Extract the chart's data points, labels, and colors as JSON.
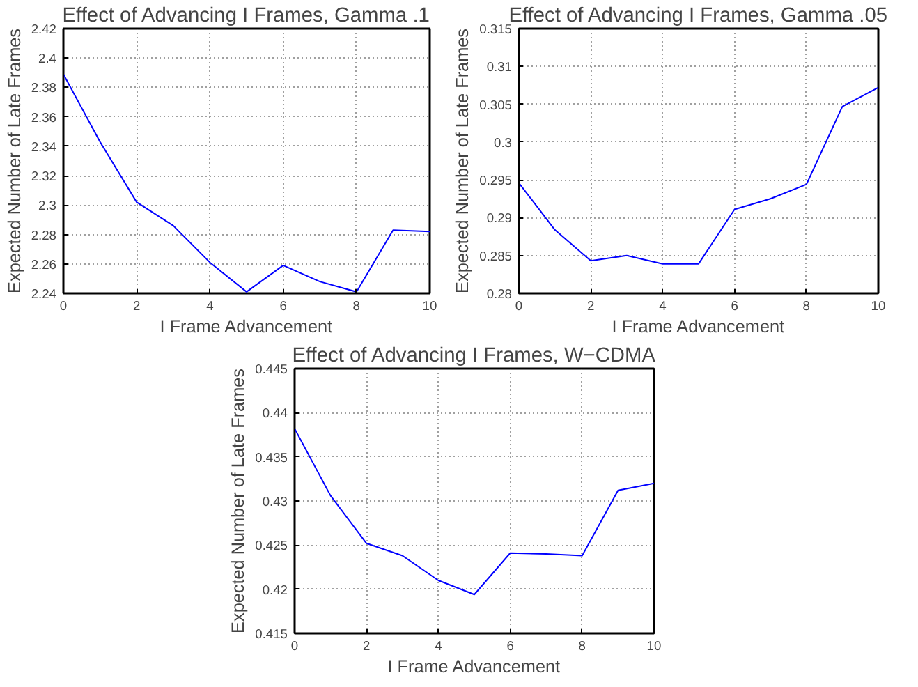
{
  "chart_data": [
    {
      "type": "line",
      "title": "Effect of Advancing I Frames, Gamma .1",
      "xlabel": "I Frame Advancement",
      "ylabel": "Expected Number of Late Frames",
      "x": [
        0,
        1,
        2,
        3,
        4,
        5,
        6,
        7,
        8,
        9,
        10
      ],
      "series": [
        {
          "color": "#0000ff",
          "values": [
            2.389,
            2.343,
            2.302,
            2.286,
            2.261,
            2.241,
            2.259,
            2.248,
            2.241,
            2.283,
            2.282
          ]
        }
      ],
      "xlim": [
        0,
        10
      ],
      "xticks": [
        0,
        2,
        4,
        6,
        8,
        10
      ],
      "ylim": [
        2.24,
        2.42
      ],
      "yticks": [
        2.24,
        2.26,
        2.28,
        2.3,
        2.32,
        2.34,
        2.36,
        2.38,
        2.4,
        2.42
      ],
      "grid": true,
      "line_style": "solid"
    },
    {
      "type": "line",
      "title": "Effect of Advancing I Frames, Gamma .05",
      "xlabel": "I Frame Advancement",
      "ylabel": "Expected Number of Late Frames",
      "x": [
        0,
        1,
        2,
        3,
        4,
        5,
        6,
        7,
        8,
        9,
        10
      ],
      "series": [
        {
          "color": "#0000ff",
          "values": [
            0.2946,
            0.2884,
            0.2843,
            0.285,
            0.2839,
            0.2839,
            0.2911,
            0.2925,
            0.2944,
            0.3047,
            0.3072
          ]
        }
      ],
      "xlim": [
        0,
        10
      ],
      "xticks": [
        0,
        2,
        4,
        6,
        8,
        10
      ],
      "ylim": [
        0.28,
        0.315
      ],
      "yticks": [
        0.28,
        0.285,
        0.29,
        0.295,
        0.3,
        0.305,
        0.31,
        0.315
      ],
      "grid": true,
      "line_style": "solid"
    },
    {
      "type": "line",
      "title": "Effect of Advancing I Frames, W−CDMA",
      "xlabel": "I Frame Advancement",
      "ylabel": "Expected Number of Late Frames",
      "x": [
        0,
        1,
        2,
        3,
        4,
        5,
        6,
        7,
        8,
        9,
        10
      ],
      "series": [
        {
          "color": "#0000ff",
          "values": [
            0.4382,
            0.4306,
            0.4252,
            0.4238,
            0.421,
            0.4194,
            0.4241,
            0.424,
            0.4238,
            0.4312,
            0.432
          ]
        }
      ],
      "xlim": [
        0,
        10
      ],
      "xticks": [
        0,
        2,
        4,
        6,
        8,
        10
      ],
      "ylim": [
        0.415,
        0.445
      ],
      "yticks": [
        0.415,
        0.42,
        0.425,
        0.43,
        0.435,
        0.44,
        0.445
      ],
      "grid": true,
      "line_style": "solid"
    }
  ]
}
